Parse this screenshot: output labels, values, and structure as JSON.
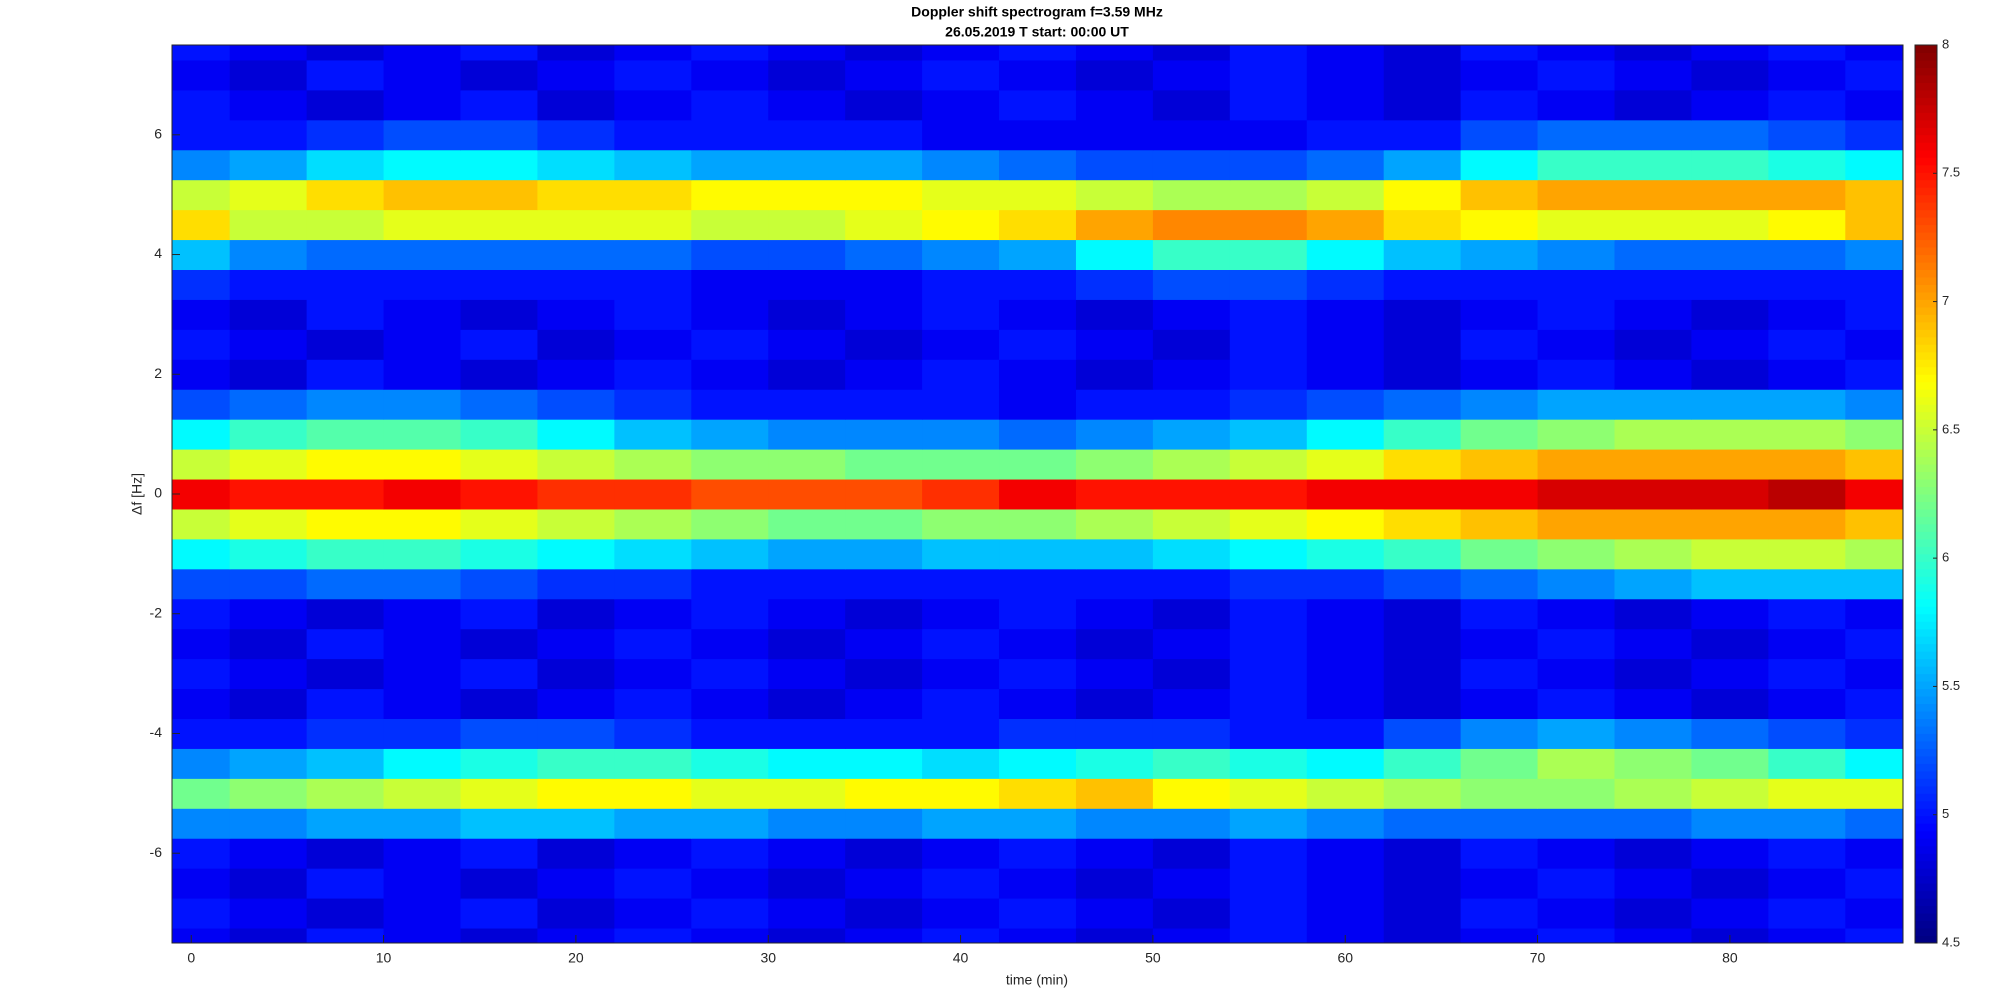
{
  "chart_data": {
    "type": "heatmap",
    "title": "Doppler shift spectrogram f=3.59 MHz",
    "subtitle": "26.05.2019    T start: 00:00 UT",
    "xlabel": "time (min)",
    "ylabel": "Δf [Hz]",
    "xlim": [
      -1,
      89
    ],
    "ylim": [
      -7.5,
      7.5
    ],
    "xticks": [
      0,
      10,
      20,
      30,
      40,
      50,
      60,
      70,
      80
    ],
    "yticks": [
      -6,
      -4,
      -2,
      0,
      2,
      4,
      6
    ],
    "clim": [
      4.5,
      8
    ],
    "cticks": [
      4.5,
      5,
      5.5,
      6,
      6.5,
      7,
      7.5,
      8
    ],
    "colormap": "jet",
    "x": [
      0,
      4,
      8,
      12,
      16,
      20,
      24,
      28,
      32,
      36,
      40,
      44,
      48,
      52,
      56,
      60,
      64,
      68,
      72,
      76,
      80,
      84,
      88
    ],
    "y": [
      -7.5,
      -7,
      -6.5,
      -6,
      -5.5,
      -5,
      -4.5,
      -4,
      -3.5,
      -3,
      -2.5,
      -2,
      -1.5,
      -1,
      -0.5,
      0,
      0.5,
      1,
      1.5,
      2,
      2.5,
      3,
      3.5,
      4,
      4.5,
      5,
      5.5,
      6,
      6.5,
      7,
      7.5
    ],
    "z": [
      [
        4.9,
        4.8,
        5.0,
        4.9,
        4.8,
        4.9,
        5.0,
        4.9,
        4.8,
        4.9,
        5.0,
        4.9,
        4.8,
        4.9,
        5.0,
        4.9,
        4.8,
        4.9,
        5.0,
        4.9,
        4.8,
        4.9,
        5.0
      ],
      [
        5.0,
        4.9,
        4.8,
        4.9,
        5.0,
        4.8,
        4.9,
        5.0,
        4.9,
        4.8,
        4.9,
        5.0,
        4.9,
        4.8,
        5.0,
        4.9,
        4.8,
        5.0,
        4.9,
        4.8,
        4.9,
        5.0,
        4.9
      ],
      [
        4.9,
        4.8,
        5.0,
        4.9,
        4.8,
        4.9,
        5.0,
        4.9,
        4.8,
        4.9,
        5.0,
        4.9,
        4.8,
        4.9,
        5.0,
        4.9,
        4.8,
        4.9,
        5.0,
        4.9,
        4.8,
        4.9,
        5.0
      ],
      [
        5.0,
        4.9,
        4.8,
        4.9,
        5.0,
        4.8,
        4.9,
        5.0,
        4.9,
        4.8,
        4.9,
        5.0,
        4.9,
        4.8,
        5.0,
        4.9,
        4.8,
        5.0,
        4.9,
        4.8,
        4.9,
        5.0,
        4.9
      ],
      [
        5.4,
        5.4,
        5.5,
        5.5,
        5.6,
        5.6,
        5.5,
        5.5,
        5.4,
        5.4,
        5.5,
        5.5,
        5.4,
        5.4,
        5.5,
        5.4,
        5.3,
        5.3,
        5.3,
        5.3,
        5.4,
        5.4,
        5.3
      ],
      [
        6.2,
        6.3,
        6.4,
        6.5,
        6.6,
        6.7,
        6.7,
        6.6,
        6.6,
        6.7,
        6.7,
        6.8,
        6.9,
        6.7,
        6.6,
        6.5,
        6.4,
        6.3,
        6.3,
        6.4,
        6.5,
        6.6,
        6.6
      ],
      [
        5.4,
        5.5,
        5.6,
        5.8,
        5.9,
        6.0,
        6.0,
        5.9,
        5.8,
        5.8,
        5.7,
        5.8,
        5.9,
        6.0,
        5.9,
        5.8,
        6.0,
        6.2,
        6.4,
        6.3,
        6.2,
        6.0,
        5.8
      ],
      [
        5.0,
        5.0,
        5.1,
        5.1,
        5.2,
        5.2,
        5.1,
        5.0,
        5.0,
        5.0,
        5.0,
        5.1,
        5.1,
        5.1,
        5.0,
        5.0,
        5.2,
        5.4,
        5.5,
        5.4,
        5.3,
        5.2,
        5.1
      ],
      [
        4.9,
        4.8,
        5.0,
        4.9,
        4.8,
        4.9,
        5.0,
        4.9,
        4.8,
        4.9,
        5.0,
        4.9,
        4.8,
        4.9,
        5.0,
        4.9,
        4.8,
        4.9,
        5.0,
        4.9,
        4.8,
        4.9,
        5.0
      ],
      [
        5.0,
        4.9,
        4.8,
        4.9,
        5.0,
        4.8,
        4.9,
        5.0,
        4.9,
        4.8,
        4.9,
        5.0,
        4.9,
        4.8,
        5.0,
        4.9,
        4.8,
        5.0,
        4.9,
        4.8,
        4.9,
        5.0,
        4.9
      ],
      [
        4.9,
        4.8,
        5.0,
        4.9,
        4.8,
        4.9,
        5.0,
        4.9,
        4.8,
        4.9,
        5.0,
        4.9,
        4.8,
        4.9,
        5.0,
        4.9,
        4.8,
        4.9,
        5.0,
        4.9,
        4.8,
        4.9,
        5.0
      ],
      [
        5.0,
        4.9,
        4.8,
        4.9,
        5.0,
        4.8,
        4.9,
        5.0,
        4.9,
        4.8,
        4.9,
        5.0,
        4.9,
        4.8,
        5.0,
        4.9,
        4.8,
        5.0,
        4.9,
        4.8,
        4.9,
        5.0,
        4.9
      ],
      [
        5.2,
        5.2,
        5.3,
        5.3,
        5.2,
        5.1,
        5.1,
        5.0,
        5.0,
        5.0,
        5.0,
        5.0,
        5.0,
        5.0,
        5.1,
        5.1,
        5.2,
        5.3,
        5.4,
        5.5,
        5.6,
        5.6,
        5.6
      ],
      [
        5.8,
        5.9,
        6.0,
        6.0,
        5.9,
        5.8,
        5.7,
        5.6,
        5.5,
        5.5,
        5.6,
        5.6,
        5.6,
        5.7,
        5.8,
        5.9,
        6.0,
        6.2,
        6.3,
        6.4,
        6.5,
        6.5,
        6.4
      ],
      [
        6.5,
        6.6,
        6.7,
        6.7,
        6.6,
        6.5,
        6.4,
        6.3,
        6.2,
        6.2,
        6.3,
        6.3,
        6.4,
        6.5,
        6.6,
        6.7,
        6.8,
        6.9,
        7.0,
        7.0,
        7.0,
        7.0,
        6.9
      ],
      [
        7.6,
        7.5,
        7.5,
        7.6,
        7.5,
        7.4,
        7.4,
        7.3,
        7.3,
        7.3,
        7.4,
        7.6,
        7.5,
        7.5,
        7.5,
        7.6,
        7.6,
        7.6,
        7.7,
        7.7,
        7.7,
        7.8,
        7.6
      ],
      [
        6.5,
        6.6,
        6.7,
        6.7,
        6.6,
        6.5,
        6.4,
        6.3,
        6.3,
        6.2,
        6.2,
        6.2,
        6.3,
        6.4,
        6.5,
        6.6,
        6.8,
        6.9,
        7.0,
        7.0,
        7.0,
        7.0,
        6.9
      ],
      [
        5.8,
        6.0,
        6.1,
        6.1,
        6.0,
        5.8,
        5.6,
        5.5,
        5.4,
        5.4,
        5.4,
        5.3,
        5.4,
        5.5,
        5.6,
        5.8,
        6.0,
        6.2,
        6.3,
        6.4,
        6.4,
        6.4,
        6.3
      ],
      [
        5.2,
        5.3,
        5.4,
        5.4,
        5.3,
        5.2,
        5.1,
        5.0,
        5.0,
        5.0,
        5.0,
        4.9,
        5.0,
        5.0,
        5.1,
        5.2,
        5.3,
        5.4,
        5.5,
        5.5,
        5.5,
        5.5,
        5.4
      ],
      [
        4.9,
        4.8,
        5.0,
        4.9,
        4.8,
        4.9,
        5.0,
        4.9,
        4.8,
        4.9,
        5.0,
        4.9,
        4.8,
        4.9,
        5.0,
        4.9,
        4.8,
        4.9,
        5.0,
        4.9,
        4.8,
        4.9,
        5.0
      ],
      [
        5.0,
        4.9,
        4.8,
        4.9,
        5.0,
        4.8,
        4.9,
        5.0,
        4.9,
        4.8,
        4.9,
        5.0,
        4.9,
        4.8,
        5.0,
        4.9,
        4.8,
        5.0,
        4.9,
        4.8,
        4.9,
        5.0,
        4.9
      ],
      [
        4.9,
        4.8,
        5.0,
        4.9,
        4.8,
        4.9,
        5.0,
        4.9,
        4.8,
        4.9,
        5.0,
        4.9,
        4.8,
        4.9,
        5.0,
        4.9,
        4.8,
        4.9,
        5.0,
        4.9,
        4.8,
        4.9,
        5.0
      ],
      [
        5.1,
        5.0,
        5.0,
        5.0,
        5.0,
        5.0,
        5.0,
        4.9,
        4.9,
        4.9,
        5.0,
        5.0,
        5.1,
        5.2,
        5.2,
        5.1,
        5.0,
        5.0,
        5.0,
        5.0,
        5.0,
        5.0,
        5.0
      ],
      [
        5.6,
        5.4,
        5.3,
        5.3,
        5.3,
        5.3,
        5.3,
        5.2,
        5.2,
        5.3,
        5.4,
        5.5,
        5.8,
        6.0,
        6.0,
        5.8,
        5.6,
        5.5,
        5.4,
        5.3,
        5.3,
        5.3,
        5.4
      ],
      [
        6.8,
        6.5,
        6.5,
        6.6,
        6.6,
        6.6,
        6.6,
        6.5,
        6.5,
        6.6,
        6.7,
        6.8,
        7.0,
        7.1,
        7.1,
        7.0,
        6.8,
        6.7,
        6.6,
        6.6,
        6.6,
        6.7,
        6.9
      ],
      [
        6.5,
        6.6,
        6.8,
        6.9,
        6.9,
        6.8,
        6.8,
        6.7,
        6.7,
        6.7,
        6.6,
        6.6,
        6.5,
        6.4,
        6.4,
        6.5,
        6.7,
        6.9,
        7.0,
        7.0,
        7.0,
        7.0,
        6.9
      ],
      [
        5.4,
        5.5,
        5.7,
        5.8,
        5.8,
        5.7,
        5.6,
        5.5,
        5.5,
        5.5,
        5.4,
        5.3,
        5.2,
        5.2,
        5.2,
        5.3,
        5.5,
        5.8,
        6.0,
        6.0,
        6.0,
        5.9,
        5.8
      ],
      [
        5.0,
        5.0,
        5.1,
        5.2,
        5.2,
        5.1,
        5.0,
        5.0,
        5.0,
        5.0,
        4.9,
        4.9,
        4.9,
        4.9,
        4.9,
        5.0,
        5.0,
        5.2,
        5.3,
        5.3,
        5.3,
        5.2,
        5.1
      ],
      [
        5.0,
        4.9,
        4.8,
        4.9,
        5.0,
        4.8,
        4.9,
        5.0,
        4.9,
        4.8,
        4.9,
        5.0,
        4.9,
        4.8,
        5.0,
        4.9,
        4.8,
        5.0,
        4.9,
        4.8,
        4.9,
        5.0,
        4.9
      ],
      [
        4.9,
        4.8,
        5.0,
        4.9,
        4.8,
        4.9,
        5.0,
        4.9,
        4.8,
        4.9,
        5.0,
        4.9,
        4.8,
        4.9,
        5.0,
        4.9,
        4.8,
        4.9,
        5.0,
        4.9,
        4.8,
        4.9,
        5.0
      ],
      [
        5.0,
        4.9,
        4.8,
        4.9,
        5.0,
        4.8,
        4.9,
        5.0,
        4.9,
        4.8,
        4.9,
        5.0,
        4.9,
        4.8,
        5.0,
        4.9,
        4.8,
        5.0,
        4.9,
        4.8,
        4.9,
        5.0,
        4.9
      ]
    ]
  }
}
